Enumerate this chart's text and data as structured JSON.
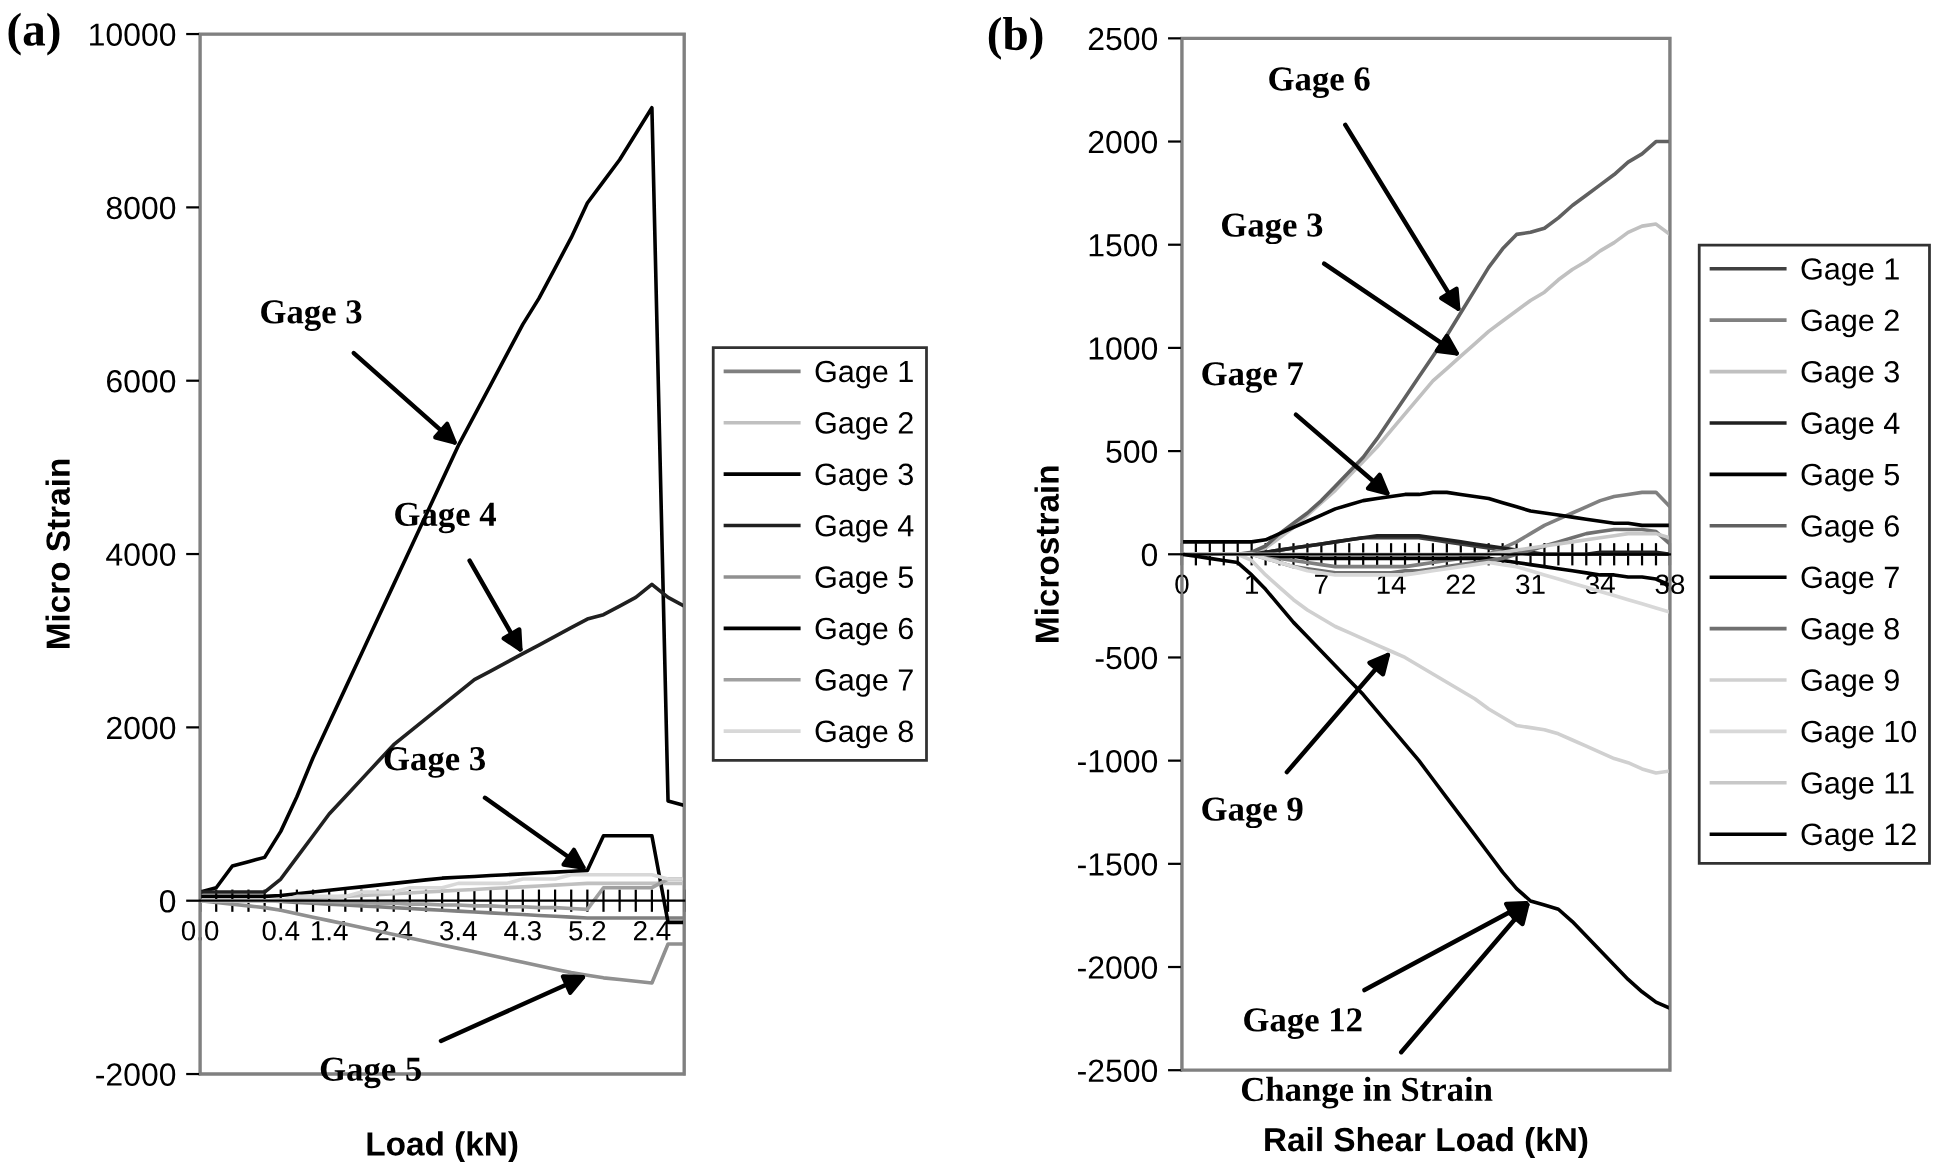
{
  "chart_data": [
    {
      "type": "line",
      "title": "(a)",
      "xlabel": "Load (kN)",
      "ylabel": "Micro Strain",
      "legend": "right",
      "categories": [
        "0.0",
        null,
        null,
        null,
        null,
        "0.4",
        null,
        null,
        "1.4",
        null,
        null,
        null,
        "2.4",
        null,
        null,
        null,
        "3.4",
        null,
        null,
        null,
        "4.3",
        null,
        null,
        null,
        "5.2",
        null,
        null,
        null,
        "2.4",
        null,
        null
      ],
      "ylim": [
        -2000,
        10000
      ],
      "yticks": [
        -2000,
        0,
        2000,
        4000,
        6000,
        8000,
        10000
      ],
      "series": [
        {
          "name": "Gage 1",
          "color": "#808080",
          "values": [
            0,
            0,
            0,
            0,
            0,
            -10,
            -20,
            -30,
            -40,
            -50,
            -60,
            -70,
            -80,
            -90,
            -100,
            -110,
            -120,
            -130,
            -140,
            -150,
            -160,
            -170,
            -180,
            -190,
            -200,
            -200,
            -200,
            -200,
            -200,
            -200,
            -200
          ]
        },
        {
          "name": "Gage 2",
          "color": "#c0c0c0",
          "values": [
            0,
            0,
            0,
            0,
            0,
            10,
            20,
            30,
            40,
            50,
            60,
            70,
            80,
            90,
            100,
            110,
            120,
            130,
            140,
            150,
            160,
            170,
            180,
            190,
            200,
            200,
            200,
            200,
            200,
            200,
            200
          ]
        },
        {
          "name": "Gage 3",
          "color": "#000000",
          "values": [
            100,
            150,
            400,
            450,
            500,
            800,
            1200,
            1650,
            2050,
            2450,
            2850,
            3250,
            3650,
            4050,
            4450,
            4850,
            5250,
            5600,
            5950,
            6300,
            6650,
            6950,
            7300,
            7650,
            8050,
            8300,
            8550,
            8850,
            9150,
            1150,
            1100
          ]
        },
        {
          "name": "Gage 4",
          "color": "#202020",
          "values": [
            100,
            100,
            100,
            100,
            100,
            250,
            500,
            750,
            1000,
            1200,
            1400,
            1600,
            1800,
            1950,
            2100,
            2250,
            2400,
            2550,
            2650,
            2750,
            2850,
            2950,
            3050,
            3150,
            3250,
            3300,
            3400,
            3500,
            3650,
            3500,
            3400
          ]
        },
        {
          "name": "Gage 5",
          "color": "#909090",
          "values": [
            0,
            -20,
            -40,
            -60,
            -80,
            -110,
            -150,
            -190,
            -230,
            -270,
            -310,
            -350,
            -390,
            -430,
            -470,
            -510,
            -550,
            -590,
            -630,
            -670,
            -710,
            -750,
            -790,
            -830,
            -860,
            -890,
            -910,
            -930,
            -950,
            -500,
            -500
          ]
        },
        {
          "name": "Gage 6",
          "color": "#000000",
          "values": [
            50,
            50,
            50,
            50,
            50,
            60,
            80,
            100,
            120,
            140,
            160,
            180,
            200,
            220,
            240,
            260,
            270,
            280,
            290,
            300,
            310,
            320,
            330,
            340,
            350,
            750,
            750,
            750,
            750,
            -250,
            -250
          ]
        },
        {
          "name": "Gage 7",
          "color": "#a0a0a0",
          "values": [
            0,
            0,
            0,
            0,
            0,
            0,
            0,
            -10,
            -10,
            -20,
            -20,
            -30,
            -30,
            -40,
            -40,
            -50,
            -50,
            -60,
            -60,
            -70,
            -70,
            -80,
            -80,
            -90,
            -100,
            150,
            150,
            150,
            150,
            250,
            250
          ]
        },
        {
          "name": "Gage 8",
          "color": "#d8d8d8",
          "values": [
            0,
            0,
            0,
            0,
            0,
            0,
            50,
            50,
            50,
            50,
            100,
            100,
            100,
            150,
            150,
            150,
            200,
            200,
            200,
            200,
            250,
            250,
            250,
            300,
            300,
            300,
            300,
            300,
            300,
            250,
            250
          ]
        }
      ],
      "annotations": [
        {
          "text": "Gage 3",
          "x": "3.4",
          "y": 5250
        },
        {
          "text": "Gage 4",
          "x": "4.3",
          "y": 2850
        },
        {
          "text": "Gage 3",
          "x": "5.2",
          "y": 350
        },
        {
          "text": "Gage 5",
          "x": "5.2",
          "y": -860
        }
      ]
    },
    {
      "type": "line",
      "title": "(b)",
      "xlabel": "Rail Shear Load (kN)",
      "ylabel": "Microstrain",
      "legend": "right",
      "categories": [
        "0",
        null,
        null,
        null,
        null,
        "1",
        null,
        null,
        null,
        null,
        "7",
        null,
        null,
        null,
        null,
        "14",
        null,
        null,
        null,
        null,
        "22",
        null,
        null,
        null,
        null,
        "31",
        null,
        null,
        null,
        null,
        "34",
        null,
        null,
        null,
        null,
        "38"
      ],
      "ylim": [
        -2500,
        2500
      ],
      "yticks": [
        -2500,
        -2000,
        -1500,
        -1000,
        -500,
        0,
        500,
        1000,
        1500,
        2000,
        2500
      ],
      "series": [
        {
          "name": "Gage 1",
          "color": "#404040",
          "values": [
            0,
            0,
            0,
            0,
            0,
            0,
            10,
            20,
            30,
            40,
            50,
            60,
            70,
            80,
            80,
            80,
            80,
            80,
            70,
            60,
            50,
            40,
            30,
            20,
            10,
            0,
            0,
            0,
            0,
            0,
            0,
            0,
            0,
            0,
            0,
            0
          ]
        },
        {
          "name": "Gage 2",
          "color": "#808080",
          "values": [
            0,
            0,
            0,
            0,
            0,
            0,
            -10,
            -20,
            -30,
            -40,
            -50,
            -60,
            -60,
            -60,
            -60,
            -60,
            -60,
            -50,
            -40,
            -30,
            -20,
            -10,
            0,
            30,
            60,
            100,
            140,
            170,
            200,
            230,
            260,
            280,
            290,
            300,
            300,
            230
          ]
        },
        {
          "name": "Gage 3",
          "color": "#c0c0c0",
          "values": [
            0,
            0,
            0,
            0,
            0,
            0,
            30,
            80,
            130,
            190,
            250,
            310,
            380,
            450,
            520,
            600,
            680,
            760,
            840,
            900,
            960,
            1020,
            1080,
            1130,
            1180,
            1230,
            1270,
            1330,
            1380,
            1420,
            1470,
            1510,
            1560,
            1590,
            1600,
            1550
          ]
        },
        {
          "name": "Gage 4",
          "color": "#202020",
          "values": [
            0,
            0,
            0,
            0,
            0,
            0,
            10,
            20,
            30,
            40,
            50,
            60,
            70,
            80,
            90,
            90,
            90,
            90,
            80,
            70,
            60,
            50,
            40,
            30,
            20,
            10,
            0,
            0,
            0,
            0,
            10,
            10,
            10,
            10,
            10,
            0
          ]
        },
        {
          "name": "Gage 5",
          "color": "#000000",
          "values": [
            0,
            0,
            0,
            0,
            0,
            0,
            0,
            -10,
            -10,
            -20,
            -20,
            -20,
            -20,
            -20,
            -20,
            -20,
            -20,
            -20,
            -20,
            -20,
            -20,
            -20,
            -20,
            -30,
            -40,
            -50,
            -60,
            -70,
            -80,
            -90,
            -100,
            -100,
            -110,
            -110,
            -120,
            -150
          ]
        },
        {
          "name": "Gage 6",
          "color": "#606060",
          "values": [
            0,
            0,
            0,
            0,
            0,
            10,
            40,
            100,
            150,
            200,
            260,
            330,
            400,
            470,
            560,
            660,
            760,
            860,
            960,
            1060,
            1170,
            1280,
            1390,
            1480,
            1550,
            1560,
            1580,
            1630,
            1690,
            1740,
            1790,
            1840,
            1900,
            1940,
            2000,
            2000
          ]
        },
        {
          "name": "Gage 7",
          "color": "#000000",
          "values": [
            60,
            60,
            60,
            60,
            60,
            60,
            70,
            100,
            130,
            160,
            190,
            220,
            240,
            260,
            270,
            280,
            290,
            290,
            300,
            300,
            290,
            280,
            270,
            250,
            230,
            210,
            200,
            190,
            180,
            170,
            160,
            150,
            150,
            140,
            140,
            140
          ]
        },
        {
          "name": "Gage 8",
          "color": "#707070",
          "values": [
            0,
            0,
            0,
            0,
            0,
            0,
            -20,
            -40,
            -60,
            -70,
            -80,
            -90,
            -90,
            -90,
            -90,
            -90,
            -80,
            -80,
            -70,
            -60,
            -50,
            -40,
            -30,
            -20,
            0,
            20,
            40,
            60,
            80,
            100,
            110,
            120,
            120,
            120,
            110,
            50
          ]
        },
        {
          "name": "Gage 9",
          "color": "#d0d0d0",
          "values": [
            0,
            0,
            0,
            0,
            0,
            -30,
            -100,
            -160,
            -220,
            -270,
            -310,
            -350,
            -380,
            -410,
            -440,
            -470,
            -500,
            -540,
            -580,
            -620,
            -660,
            -700,
            -750,
            -790,
            -830,
            -840,
            -850,
            -870,
            -900,
            -930,
            -960,
            -990,
            -1010,
            -1040,
            -1060,
            -1050
          ]
        },
        {
          "name": "Gage 10",
          "color": "#d8d8d8",
          "values": [
            0,
            0,
            0,
            0,
            0,
            0,
            -20,
            -40,
            -60,
            -80,
            -90,
            -100,
            -100,
            -100,
            -100,
            -100,
            -100,
            -90,
            -80,
            -70,
            -60,
            -50,
            -40,
            -50,
            -60,
            -80,
            -100,
            -120,
            -140,
            -160,
            -180,
            -200,
            -220,
            -240,
            -260,
            -280
          ]
        },
        {
          "name": "Gage 11",
          "color": "#c8c8c8",
          "values": [
            0,
            0,
            0,
            0,
            0,
            0,
            0,
            0,
            0,
            0,
            0,
            0,
            0,
            0,
            0,
            0,
            0,
            0,
            0,
            0,
            0,
            0,
            0,
            10,
            20,
            30,
            40,
            50,
            60,
            70,
            80,
            90,
            100,
            100,
            100,
            80
          ]
        },
        {
          "name": "Gage 12",
          "color": "#000000",
          "values": [
            0,
            -10,
            -20,
            -30,
            -40,
            -100,
            -170,
            -250,
            -330,
            -400,
            -470,
            -540,
            -610,
            -680,
            -760,
            -840,
            -920,
            -1000,
            -1090,
            -1180,
            -1270,
            -1360,
            -1450,
            -1540,
            -1620,
            -1680,
            -1700,
            -1720,
            -1780,
            -1850,
            -1920,
            -1990,
            -2060,
            -2120,
            -2170,
            -2200
          ]
        }
      ],
      "annotations": [
        {
          "text": "Gage 6",
          "x": "22",
          "y": 1170
        },
        {
          "text": "Gage 3",
          "x": "22",
          "y": 960
        },
        {
          "text": "Gage 7",
          "x": "14",
          "y": 280
        },
        {
          "text": "Gage 9",
          "x": "14",
          "y": -470
        },
        {
          "text": "Gage 12",
          "x": "31",
          "y": -1680
        },
        {
          "text": "Change in Strain",
          "x": "31",
          "y": -1680
        }
      ]
    }
  ]
}
